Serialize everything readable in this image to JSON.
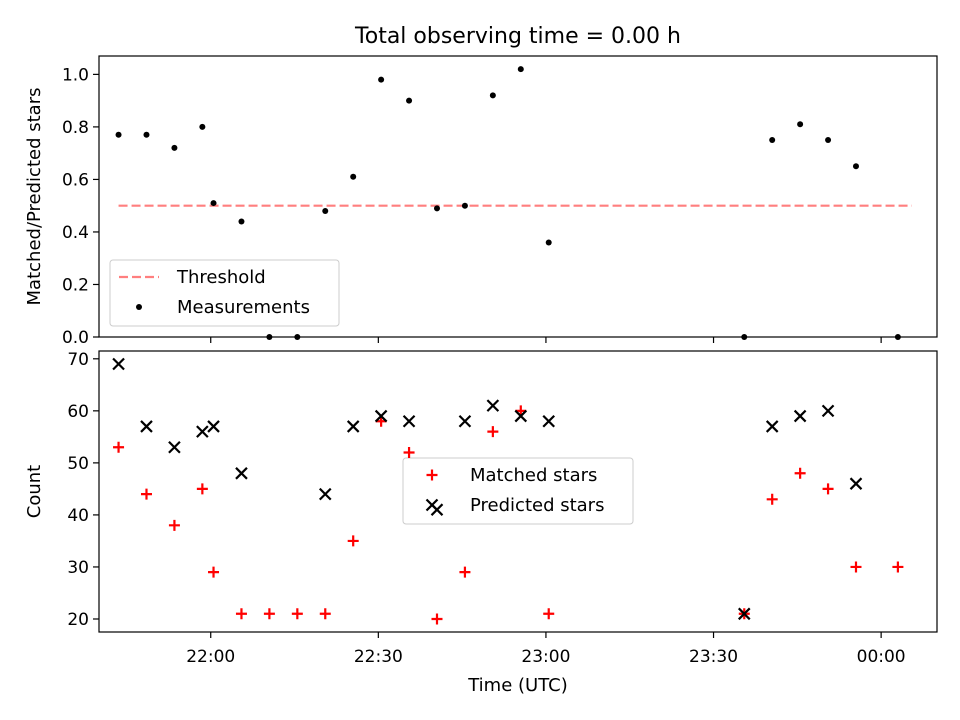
{
  "title": "Total observing time = 0.00 h",
  "chart_data": [
    {
      "type": "scatter",
      "ylabel": "Matched/Predicted stars",
      "xlabel": "",
      "ylim": [
        0.0,
        1.07
      ],
      "xlim": [
        "21:40",
        "00:10"
      ],
      "yticks": [
        0.0,
        0.2,
        0.4,
        0.6,
        0.8,
        1.0
      ],
      "ytick_labels": [
        "0.0",
        "0.2",
        "0.4",
        "0.6",
        "0.8",
        "1.0"
      ],
      "xticks": [
        "22:00",
        "22:30",
        "23:00",
        "23:30",
        "00:00"
      ],
      "show_xtick_labels": false,
      "grid": false,
      "legend": {
        "placement": "lower-left",
        "entries": [
          "Threshold",
          "Measurements"
        ]
      },
      "threshold": {
        "name": "Threshold",
        "y": 0.5,
        "x_start": "21:43:30",
        "x_end": "00:05:30",
        "color": "#ff7f7f",
        "style": "dashed"
      },
      "series": [
        {
          "name": "Measurements",
          "marker": "dot",
          "color": "#000000",
          "points": [
            [
              "21:43:30",
              0.77
            ],
            [
              "21:48:30",
              0.77
            ],
            [
              "21:53:30",
              0.72
            ],
            [
              "21:58:30",
              0.8
            ],
            [
              "22:00:30",
              0.51
            ],
            [
              "22:05:30",
              0.44
            ],
            [
              "22:10:30",
              0.0
            ],
            [
              "22:15:30",
              0.0
            ],
            [
              "22:20:30",
              0.48
            ],
            [
              "22:25:30",
              0.61
            ],
            [
              "22:30:30",
              0.98
            ],
            [
              "22:35:30",
              0.9
            ],
            [
              "22:40:30",
              0.49
            ],
            [
              "22:45:30",
              0.5
            ],
            [
              "22:50:30",
              0.92
            ],
            [
              "22:55:30",
              1.02
            ],
            [
              "23:00:30",
              0.36
            ],
            [
              "23:35:30",
              0.0
            ],
            [
              "23:40:30",
              0.75
            ],
            [
              "23:45:30",
              0.81
            ],
            [
              "23:50:30",
              0.75
            ],
            [
              "23:55:30",
              0.65
            ],
            [
              "00:03:00",
              0.0
            ]
          ]
        }
      ]
    },
    {
      "type": "scatter",
      "ylabel": "Count",
      "xlabel": "Time (UTC)",
      "ylim": [
        17.5,
        71.5
      ],
      "xlim": [
        "21:40",
        "00:10"
      ],
      "yticks": [
        20,
        30,
        40,
        50,
        60,
        70
      ],
      "ytick_labels": [
        "20",
        "30",
        "40",
        "50",
        "60",
        "70"
      ],
      "xticks": [
        "22:00",
        "22:30",
        "23:00",
        "23:30",
        "00:00"
      ],
      "xtick_labels": [
        "22:00",
        "22:30",
        "23:00",
        "23:30",
        "00:00"
      ],
      "grid": false,
      "legend": {
        "placement": "center",
        "entries": [
          "Matched stars",
          "Predicted stars"
        ]
      },
      "series": [
        {
          "name": "Matched stars",
          "marker": "plus",
          "color": "#ff0000",
          "points": [
            [
              "21:43:30",
              53
            ],
            [
              "21:48:30",
              44
            ],
            [
              "21:53:30",
              38
            ],
            [
              "21:58:30",
              45
            ],
            [
              "22:00:30",
              29
            ],
            [
              "22:05:30",
              21
            ],
            [
              "22:10:30",
              21
            ],
            [
              "22:15:30",
              21
            ],
            [
              "22:20:30",
              21
            ],
            [
              "22:25:30",
              35
            ],
            [
              "22:30:30",
              58
            ],
            [
              "22:35:30",
              52
            ],
            [
              "22:40:30",
              20
            ],
            [
              "22:45:30",
              29
            ],
            [
              "22:50:30",
              56
            ],
            [
              "22:55:30",
              60
            ],
            [
              "23:00:30",
              21
            ],
            [
              "23:35:30",
              21
            ],
            [
              "23:40:30",
              43
            ],
            [
              "23:45:30",
              48
            ],
            [
              "23:50:30",
              45
            ],
            [
              "23:55:30",
              30
            ],
            [
              "00:03:00",
              30
            ]
          ]
        },
        {
          "name": "Predicted stars",
          "marker": "x",
          "color": "#000000",
          "points": [
            [
              "21:43:30",
              69
            ],
            [
              "21:48:30",
              57
            ],
            [
              "21:53:30",
              53
            ],
            [
              "21:58:30",
              56
            ],
            [
              "22:00:30",
              57
            ],
            [
              "22:05:30",
              48
            ],
            [
              "22:20:30",
              44
            ],
            [
              "22:25:30",
              57
            ],
            [
              "22:30:30",
              59
            ],
            [
              "22:35:30",
              58
            ],
            [
              "22:40:30",
              41
            ],
            [
              "22:45:30",
              58
            ],
            [
              "22:50:30",
              61
            ],
            [
              "22:55:30",
              59
            ],
            [
              "23:00:30",
              58
            ],
            [
              "23:35:30",
              21
            ],
            [
              "23:40:30",
              57
            ],
            [
              "23:45:30",
              59
            ],
            [
              "23:50:30",
              60
            ],
            [
              "23:55:30",
              46
            ]
          ]
        }
      ]
    }
  ]
}
